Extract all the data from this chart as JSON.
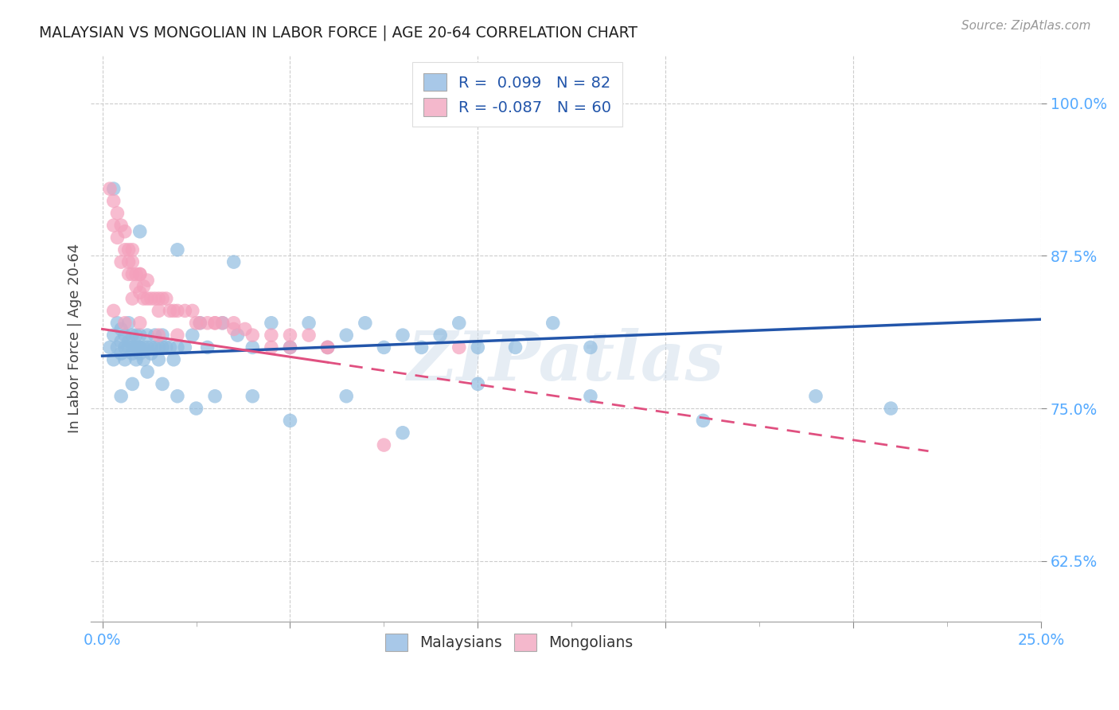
{
  "title": "MALAYSIAN VS MONGOLIAN IN LABOR FORCE | AGE 20-64 CORRELATION CHART",
  "source": "Source: ZipAtlas.com",
  "ylabel": "In Labor Force | Age 20-64",
  "x_range": [
    -0.003,
    0.25
  ],
  "y_range": [
    0.575,
    1.04
  ],
  "legend_entries": [
    {
      "label": "R =  0.099   N = 82",
      "color": "#a8c8e8"
    },
    {
      "label": "R = -0.087   N = 60",
      "color": "#f4b8cc"
    }
  ],
  "legend_bottom": [
    "Malaysians",
    "Mongolians"
  ],
  "malaysian_color": "#90bce0",
  "mongolian_color": "#f4a0bc",
  "trend_malaysian_color": "#2255aa",
  "trend_mongolian_color": "#e05080",
  "watermark": "ZIPatlas",
  "background_color": "#ffffff",
  "grid_color": "#cccccc",
  "title_color": "#222222",
  "tick_color": "#55aaff",
  "malaysian_x": [
    0.002,
    0.003,
    0.003,
    0.004,
    0.004,
    0.005,
    0.005,
    0.005,
    0.006,
    0.006,
    0.006,
    0.007,
    0.007,
    0.007,
    0.008,
    0.008,
    0.008,
    0.009,
    0.009,
    0.009,
    0.01,
    0.01,
    0.01,
    0.01,
    0.011,
    0.011,
    0.012,
    0.012,
    0.013,
    0.013,
    0.014,
    0.014,
    0.015,
    0.015,
    0.016,
    0.016,
    0.017,
    0.018,
    0.019,
    0.02,
    0.022,
    0.024,
    0.026,
    0.028,
    0.032,
    0.036,
    0.04,
    0.045,
    0.05,
    0.055,
    0.06,
    0.065,
    0.07,
    0.075,
    0.08,
    0.085,
    0.09,
    0.095,
    0.1,
    0.11,
    0.12,
    0.13,
    0.005,
    0.008,
    0.012,
    0.016,
    0.02,
    0.025,
    0.03,
    0.04,
    0.05,
    0.065,
    0.08,
    0.1,
    0.13,
    0.16,
    0.19,
    0.21,
    0.003,
    0.01,
    0.02,
    0.035
  ],
  "malaysian_y": [
    0.8,
    0.81,
    0.79,
    0.82,
    0.8,
    0.815,
    0.795,
    0.805,
    0.81,
    0.8,
    0.79,
    0.805,
    0.8,
    0.82,
    0.795,
    0.81,
    0.8,
    0.8,
    0.79,
    0.81,
    0.8,
    0.795,
    0.81,
    0.8,
    0.8,
    0.79,
    0.8,
    0.81,
    0.795,
    0.8,
    0.8,
    0.81,
    0.8,
    0.79,
    0.8,
    0.81,
    0.8,
    0.8,
    0.79,
    0.8,
    0.8,
    0.81,
    0.82,
    0.8,
    0.82,
    0.81,
    0.8,
    0.82,
    0.8,
    0.82,
    0.8,
    0.81,
    0.82,
    0.8,
    0.81,
    0.8,
    0.81,
    0.82,
    0.8,
    0.8,
    0.82,
    0.8,
    0.76,
    0.77,
    0.78,
    0.77,
    0.76,
    0.75,
    0.76,
    0.76,
    0.74,
    0.76,
    0.73,
    0.77,
    0.76,
    0.74,
    0.76,
    0.75,
    0.93,
    0.895,
    0.88,
    0.87
  ],
  "mongolian_x": [
    0.002,
    0.003,
    0.003,
    0.004,
    0.004,
    0.005,
    0.005,
    0.006,
    0.006,
    0.007,
    0.007,
    0.007,
    0.008,
    0.008,
    0.008,
    0.009,
    0.009,
    0.01,
    0.01,
    0.01,
    0.011,
    0.011,
    0.012,
    0.012,
    0.013,
    0.014,
    0.015,
    0.016,
    0.017,
    0.018,
    0.019,
    0.02,
    0.022,
    0.024,
    0.026,
    0.028,
    0.03,
    0.032,
    0.035,
    0.038,
    0.04,
    0.045,
    0.05,
    0.055,
    0.06,
    0.008,
    0.015,
    0.025,
    0.035,
    0.05,
    0.003,
    0.006,
    0.01,
    0.015,
    0.02,
    0.03,
    0.045,
    0.06,
    0.075,
    0.095
  ],
  "mongolian_y": [
    0.93,
    0.92,
    0.9,
    0.91,
    0.89,
    0.9,
    0.87,
    0.895,
    0.88,
    0.88,
    0.86,
    0.87,
    0.87,
    0.88,
    0.86,
    0.86,
    0.85,
    0.86,
    0.845,
    0.86,
    0.85,
    0.84,
    0.855,
    0.84,
    0.84,
    0.84,
    0.84,
    0.84,
    0.84,
    0.83,
    0.83,
    0.83,
    0.83,
    0.83,
    0.82,
    0.82,
    0.82,
    0.82,
    0.815,
    0.815,
    0.81,
    0.81,
    0.8,
    0.81,
    0.8,
    0.84,
    0.83,
    0.82,
    0.82,
    0.81,
    0.83,
    0.82,
    0.82,
    0.81,
    0.81,
    0.82,
    0.8,
    0.8,
    0.72,
    0.8
  ],
  "trend_malay_x0": 0.0,
  "trend_malay_x1": 0.25,
  "trend_malay_y0": 0.793,
  "trend_malay_y1": 0.823,
  "trend_mongo_x0": 0.0,
  "trend_mongo_x1": 0.22,
  "trend_mongo_y0": 0.815,
  "trend_mongo_y1": 0.715
}
